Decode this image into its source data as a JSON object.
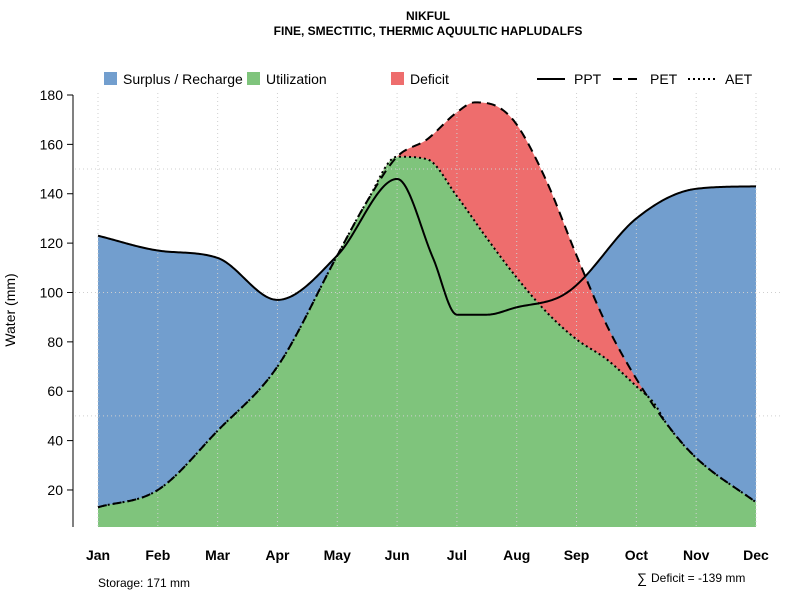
{
  "chart_data": {
    "type": "area",
    "title": "NIKFUL",
    "subtitle": "FINE, SMECTITIC, THERMIC AQUULTIC HAPLUDALFS",
    "xlabel": "",
    "ylabel": "Water (mm)",
    "ylim": [
      5,
      180
    ],
    "yticks": [
      20,
      40,
      60,
      80,
      100,
      120,
      140,
      160,
      180
    ],
    "categories": [
      "Jan",
      "Feb",
      "Mar",
      "Apr",
      "May",
      "Jun",
      "Jul",
      "Aug",
      "Sep",
      "Oct",
      "Nov",
      "Dec"
    ],
    "grid": true,
    "series": [
      {
        "name": "PPT",
        "style": "solid",
        "x": [
          1,
          2,
          3,
          4,
          5,
          6,
          6.6,
          7,
          7.5,
          8,
          8.7,
          9,
          10,
          11,
          12
        ],
        "values": [
          123,
          117,
          114,
          97,
          115,
          146,
          114,
          91,
          91,
          94,
          98,
          103,
          130,
          142,
          143
        ]
      },
      {
        "name": "PET",
        "style": "dashed",
        "x": [
          1,
          2,
          3,
          4,
          5,
          5.5,
          6,
          6.5,
          7,
          7.3,
          7.7,
          8,
          8.5,
          9,
          9.5,
          10,
          10.5,
          11,
          12
        ],
        "values": [
          13,
          20,
          44,
          70,
          115,
          137,
          155,
          162,
          173,
          177,
          175,
          168,
          145,
          115,
          87,
          65,
          47,
          33,
          15
        ]
      },
      {
        "name": "AET",
        "style": "dotted",
        "x": [
          1,
          2,
          3,
          4,
          5,
          5.5,
          6,
          6.5,
          7,
          7.5,
          8,
          8.5,
          9,
          9.5,
          10,
          10.3,
          10.5,
          11,
          12
        ],
        "values": [
          13,
          20,
          44,
          70,
          115,
          137,
          155,
          154,
          139,
          122,
          106,
          92,
          81,
          73,
          62,
          55,
          47,
          33,
          15
        ]
      }
    ],
    "legend": [
      {
        "label": "Surplus / Recharge",
        "kind": "patch",
        "color": "#729ECE"
      },
      {
        "label": "Utilization",
        "kind": "patch",
        "color": "#7FC47C"
      },
      {
        "label": "Deficit",
        "kind": "patch",
        "color": "#EE6D6D"
      },
      {
        "label": "PPT",
        "kind": "line",
        "style": "solid"
      },
      {
        "label": "PET",
        "kind": "line",
        "style": "dashed"
      },
      {
        "label": "AET",
        "kind": "line",
        "style": "dotted"
      }
    ],
    "legend_position": "top",
    "colors": {
      "surplus": "#729ECE",
      "utilization": "#7FC47C",
      "deficit": "#EE6D6D"
    },
    "annotations": {
      "storage": "Storage: 171 mm",
      "deficit_symbol": "∑",
      "deficit": "Deficit = -139 mm"
    }
  }
}
